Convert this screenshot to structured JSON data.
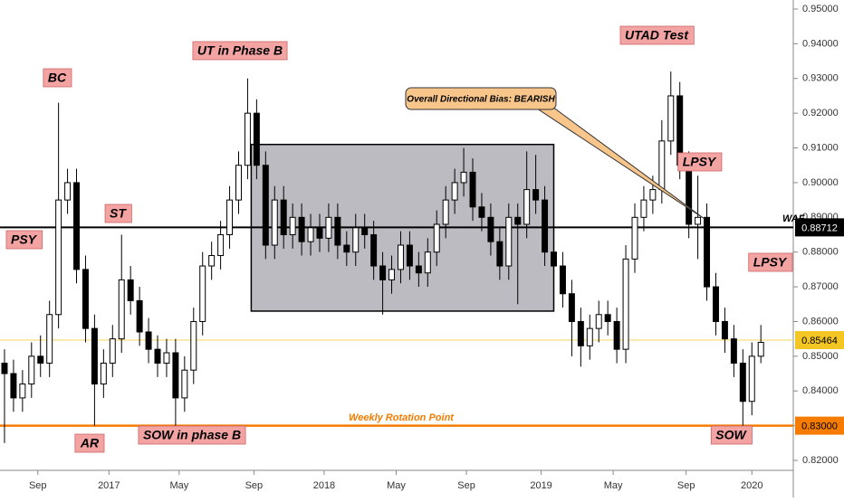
{
  "chart_data": {
    "type": "candlestick",
    "up_color": "#ffffff",
    "down_color": "#000000",
    "xlim": [
      -0.5,
      87.5
    ],
    "xticks": [
      {
        "value": 3.7,
        "label": "Sep"
      },
      {
        "value": 11.6,
        "label": "2017"
      },
      {
        "value": 19.4,
        "label": "May"
      },
      {
        "value": 27.7,
        "label": "Sep"
      },
      {
        "value": 35.5,
        "label": "2018"
      },
      {
        "value": 43.5,
        "label": "May"
      },
      {
        "value": 51.3,
        "label": "Sep"
      },
      {
        "value": 59.6,
        "label": "2019"
      },
      {
        "value": 67.6,
        "label": "May"
      },
      {
        "value": 75.7,
        "label": "Sep"
      },
      {
        "value": 83,
        "label": "2020"
      }
    ],
    "ylim": [
      0.82,
      0.95
    ],
    "yticks": [
      {
        "value": 0.95,
        "label": "0.95000"
      },
      {
        "value": 0.94,
        "label": "0.94000"
      },
      {
        "value": 0.93,
        "label": "0.93000"
      },
      {
        "value": 0.92,
        "label": "0.92000"
      },
      {
        "value": 0.91,
        "label": "0.91000"
      },
      {
        "value": 0.9,
        "label": "0.90000"
      },
      {
        "value": 0.89,
        "label": "0.89000"
      },
      {
        "value": 0.88,
        "label": "0.88000"
      },
      {
        "value": 0.87,
        "label": "0.87000"
      },
      {
        "value": 0.86,
        "label": "0.86000"
      },
      {
        "value": 0.85,
        "label": "0.85000"
      },
      {
        "value": 0.84,
        "label": "0.84000"
      },
      {
        "value": 0.83,
        "label": "0.83000"
      },
      {
        "value": 0.82,
        "label": "0.82000"
      }
    ],
    "x": [
      0,
      1,
      2,
      3,
      4,
      5,
      6,
      7,
      8,
      9,
      10,
      11,
      12,
      13,
      14,
      15,
      16,
      17,
      18,
      19,
      20,
      21,
      22,
      23,
      24,
      25,
      26,
      27,
      28,
      29,
      30,
      31,
      32,
      33,
      34,
      35,
      36,
      37,
      38,
      39,
      40,
      41,
      42,
      43,
      44,
      45,
      46,
      47,
      48,
      49,
      50,
      51,
      52,
      53,
      54,
      55,
      56,
      57,
      58,
      59,
      60,
      61,
      62,
      63,
      64,
      65,
      66,
      67,
      68,
      69,
      70,
      71,
      72,
      73,
      74,
      75,
      76,
      77,
      78,
      79,
      80,
      81,
      82,
      83,
      84
    ],
    "open": [
      0.848,
      0.845,
      0.838,
      0.842,
      0.85,
      0.848,
      0.862,
      0.895,
      0.9,
      0.875,
      0.858,
      0.842,
      0.848,
      0.855,
      0.872,
      0.866,
      0.857,
      0.852,
      0.848,
      0.851,
      0.838,
      0.846,
      0.86,
      0.876,
      0.879,
      0.885,
      0.895,
      0.905,
      0.92,
      0.905,
      0.882,
      0.895,
      0.885,
      0.89,
      0.883,
      0.887,
      0.884,
      0.89,
      0.882,
      0.88,
      0.887,
      0.885,
      0.876,
      0.872,
      0.875,
      0.882,
      0.876,
      0.874,
      0.88,
      0.888,
      0.895,
      0.9,
      0.903,
      0.893,
      0.89,
      0.883,
      0.876,
      0.89,
      0.888,
      0.898,
      0.895,
      0.88,
      0.876,
      0.868,
      0.86,
      0.853,
      0.858,
      0.862,
      0.86,
      0.852,
      0.878,
      0.89,
      0.895,
      0.898,
      0.912,
      0.925,
      0.905,
      0.888,
      0.89,
      0.87,
      0.86,
      0.855,
      0.848,
      0.837,
      0.85
    ],
    "high": [
      0.852,
      0.849,
      0.846,
      0.854,
      0.856,
      0.866,
      0.923,
      0.904,
      0.904,
      0.879,
      0.862,
      0.852,
      0.859,
      0.885,
      0.876,
      0.87,
      0.861,
      0.856,
      0.855,
      0.855,
      0.85,
      0.864,
      0.88,
      0.883,
      0.889,
      0.899,
      0.909,
      0.93,
      0.924,
      0.909,
      0.899,
      0.899,
      0.894,
      0.894,
      0.891,
      0.891,
      0.894,
      0.894,
      0.886,
      0.891,
      0.891,
      0.889,
      0.88,
      0.879,
      0.886,
      0.886,
      0.88,
      0.884,
      0.892,
      0.899,
      0.904,
      0.91,
      0.907,
      0.897,
      0.894,
      0.887,
      0.894,
      0.894,
      0.909,
      0.908,
      0.899,
      0.884,
      0.88,
      0.872,
      0.864,
      0.862,
      0.866,
      0.866,
      0.864,
      0.882,
      0.894,
      0.899,
      0.902,
      0.918,
      0.932,
      0.929,
      0.909,
      0.902,
      0.894,
      0.874,
      0.864,
      0.859,
      0.852,
      0.854,
      0.859
    ],
    "low": [
      0.825,
      0.834,
      0.834,
      0.838,
      0.844,
      0.844,
      0.858,
      0.891,
      0.871,
      0.854,
      0.83,
      0.838,
      0.844,
      0.851,
      0.862,
      0.853,
      0.848,
      0.844,
      0.844,
      0.829,
      0.834,
      0.842,
      0.856,
      0.872,
      0.875,
      0.881,
      0.891,
      0.901,
      0.901,
      0.878,
      0.878,
      0.881,
      0.881,
      0.879,
      0.879,
      0.88,
      0.88,
      0.878,
      0.876,
      0.876,
      0.881,
      0.872,
      0.862,
      0.868,
      0.871,
      0.872,
      0.87,
      0.87,
      0.876,
      0.884,
      0.891,
      0.896,
      0.889,
      0.886,
      0.879,
      0.872,
      0.872,
      0.865,
      0.884,
      0.891,
      0.876,
      0.866,
      0.864,
      0.85,
      0.847,
      0.849,
      0.854,
      0.856,
      0.848,
      0.848,
      0.874,
      0.886,
      0.891,
      0.894,
      0.908,
      0.901,
      0.884,
      0.878,
      0.866,
      0.856,
      0.851,
      0.844,
      0.83,
      0.833,
      0.848
    ],
    "close": [
      0.845,
      0.838,
      0.842,
      0.85,
      0.848,
      0.862,
      0.895,
      0.9,
      0.875,
      0.858,
      0.842,
      0.848,
      0.855,
      0.872,
      0.866,
      0.857,
      0.852,
      0.848,
      0.851,
      0.838,
      0.846,
      0.86,
      0.876,
      0.879,
      0.885,
      0.895,
      0.905,
      0.92,
      0.905,
      0.882,
      0.895,
      0.885,
      0.89,
      0.883,
      0.887,
      0.884,
      0.89,
      0.882,
      0.88,
      0.887,
      0.885,
      0.876,
      0.872,
      0.875,
      0.882,
      0.876,
      0.874,
      0.88,
      0.888,
      0.895,
      0.9,
      0.903,
      0.893,
      0.89,
      0.883,
      0.876,
      0.89,
      0.888,
      0.898,
      0.895,
      0.88,
      0.876,
      0.868,
      0.86,
      0.853,
      0.858,
      0.862,
      0.86,
      0.852,
      0.878,
      0.89,
      0.895,
      0.898,
      0.912,
      0.925,
      0.905,
      0.888,
      0.89,
      0.87,
      0.86,
      0.855,
      0.848,
      0.837,
      0.85,
      0.854
    ],
    "zone": {
      "x": [
        27.4,
        61
      ],
      "y": [
        0.863,
        0.911
      ],
      "color": "#9e9ea6"
    },
    "hlines": [
      {
        "value": 0.88712,
        "label": "0.88712",
        "color": "#000000"
      },
      {
        "value": 0.85464,
        "label": "0.85464",
        "color": "#f3c623"
      },
      {
        "value": 0.83,
        "label": "0.83000",
        "color": "#f57c00"
      }
    ],
    "annotations": [
      "PSY",
      "BC",
      "ST",
      "AR",
      "SOW in phase B",
      "UT in Phase B",
      "UTAD Test",
      "LPSY",
      "LPSY",
      "SOW"
    ],
    "rotation_label": "Weekly Rotation  Point",
    "callout": "Overall Directional Bias: BEARISH",
    "line_label": "WAF"
  }
}
